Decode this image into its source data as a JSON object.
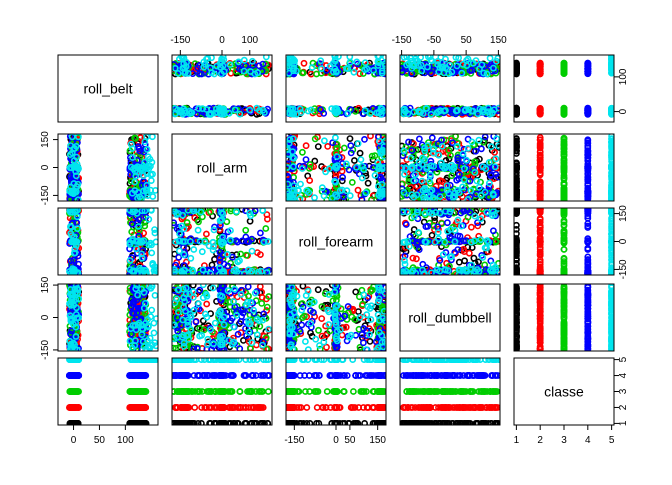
{
  "chart_data": {
    "type": "scatter",
    "variables": [
      "roll_belt",
      "roll_arm",
      "roll_forearm",
      "roll_dumbbell",
      "classe"
    ],
    "ranges": {
      "roll_belt": [
        -30,
        163
      ],
      "roll_arm": [
        -180,
        180
      ],
      "roll_forearm": [
        -180,
        180
      ],
      "roll_dumbbell": [
        -155,
        155
      ],
      "classe": [
        0.9,
        5.1
      ]
    },
    "ticks": {
      "roll_belt": [
        0,
        50,
        100
      ],
      "roll_arm": [
        -150,
        0,
        100
      ],
      "roll_forearm": [
        -150,
        0,
        50,
        150
      ],
      "roll_dumbbell": [
        -150,
        -50,
        50,
        150
      ],
      "classe": [
        1,
        2,
        3,
        4,
        5
      ]
    },
    "tick_labels": {
      "roll_belt": [
        "0",
        "50",
        "100"
      ],
      "roll_arm": [
        "-150",
        "0",
        "100"
      ],
      "roll_arm_left": [
        "-150",
        "0",
        "150"
      ],
      "roll_forearm": [
        "-150",
        "0",
        "50",
        "150"
      ],
      "roll_forearm_right": [
        "-150",
        "0",
        "150"
      ],
      "roll_dumbbell": [
        "-150",
        "-50",
        "50",
        "150"
      ],
      "roll_dumbbell_left": [
        "-150",
        "0",
        "150"
      ],
      "classe": [
        "1",
        "2",
        "3",
        "4",
        "5"
      ],
      "belt_right": [
        "0",
        "100"
      ]
    },
    "classes": [
      1,
      2,
      3,
      4,
      5
    ],
    "class_colors": [
      "#000000",
      "#ff0000",
      "#00cd00",
      "#0000ff",
      "#00e5ee"
    ],
    "grid": false,
    "legend": "none"
  }
}
